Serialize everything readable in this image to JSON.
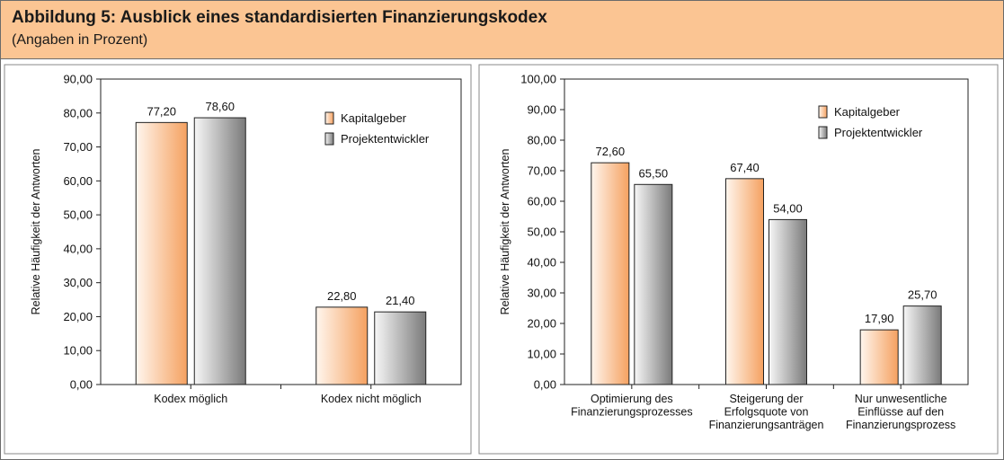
{
  "figure": {
    "title": "Abbildung 5: Ausblick eines standardisierten Finanzierungskodex",
    "subtitle": "(Angaben in Prozent)"
  },
  "colors": {
    "kapitalgeber": "#f5a160",
    "projektentwickler": "#8c8c8c",
    "header_bg": "#fbc593"
  },
  "chart_data": [
    {
      "type": "bar",
      "ylabel": "Relative Häufigkeit der Antworten",
      "xlabel": "",
      "ylim": [
        0,
        90
      ],
      "ytick_step": 10,
      "yticks": [
        "0,00",
        "10,00",
        "20,00",
        "30,00",
        "40,00",
        "50,00",
        "60,00",
        "70,00",
        "80,00",
        "90,00"
      ],
      "categories": [
        [
          "Kodex möglich"
        ],
        [
          "Kodex nicht möglich"
        ]
      ],
      "series": [
        {
          "name": "Kapitalgeber",
          "values": [
            77.2,
            22.8
          ],
          "labels": [
            "77,20",
            "22,80"
          ]
        },
        {
          "name": "Projektentwickler",
          "values": [
            78.6,
            21.4
          ],
          "labels": [
            "78,60",
            "21,40"
          ]
        }
      ],
      "legend": "top-right",
      "grid": false
    },
    {
      "type": "bar",
      "ylabel": "Relative Häufigkeit der Antworten",
      "xlabel": "",
      "ylim": [
        0,
        100
      ],
      "ytick_step": 10,
      "yticks": [
        "0,00",
        "10,00",
        "20,00",
        "30,00",
        "40,00",
        "50,00",
        "60,00",
        "70,00",
        "80,00",
        "90,00",
        "100,00"
      ],
      "categories": [
        [
          "Optimierung des",
          "Finanzierungsprozesses"
        ],
        [
          "Steigerung der",
          "Erfolgsquote von",
          "Finanzierungsanträgen"
        ],
        [
          "Nur unwesentliche",
          "Einflüsse auf den",
          "Finanzierungsprozess"
        ]
      ],
      "series": [
        {
          "name": "Kapitalgeber",
          "values": [
            72.6,
            67.4,
            17.9
          ],
          "labels": [
            "72,60",
            "67,40",
            "17,90"
          ]
        },
        {
          "name": "Projektentwickler",
          "values": [
            65.5,
            54.0,
            25.7
          ],
          "labels": [
            "65,50",
            "54,00",
            "25,70"
          ]
        }
      ],
      "legend": "top-right",
      "grid": false
    }
  ]
}
